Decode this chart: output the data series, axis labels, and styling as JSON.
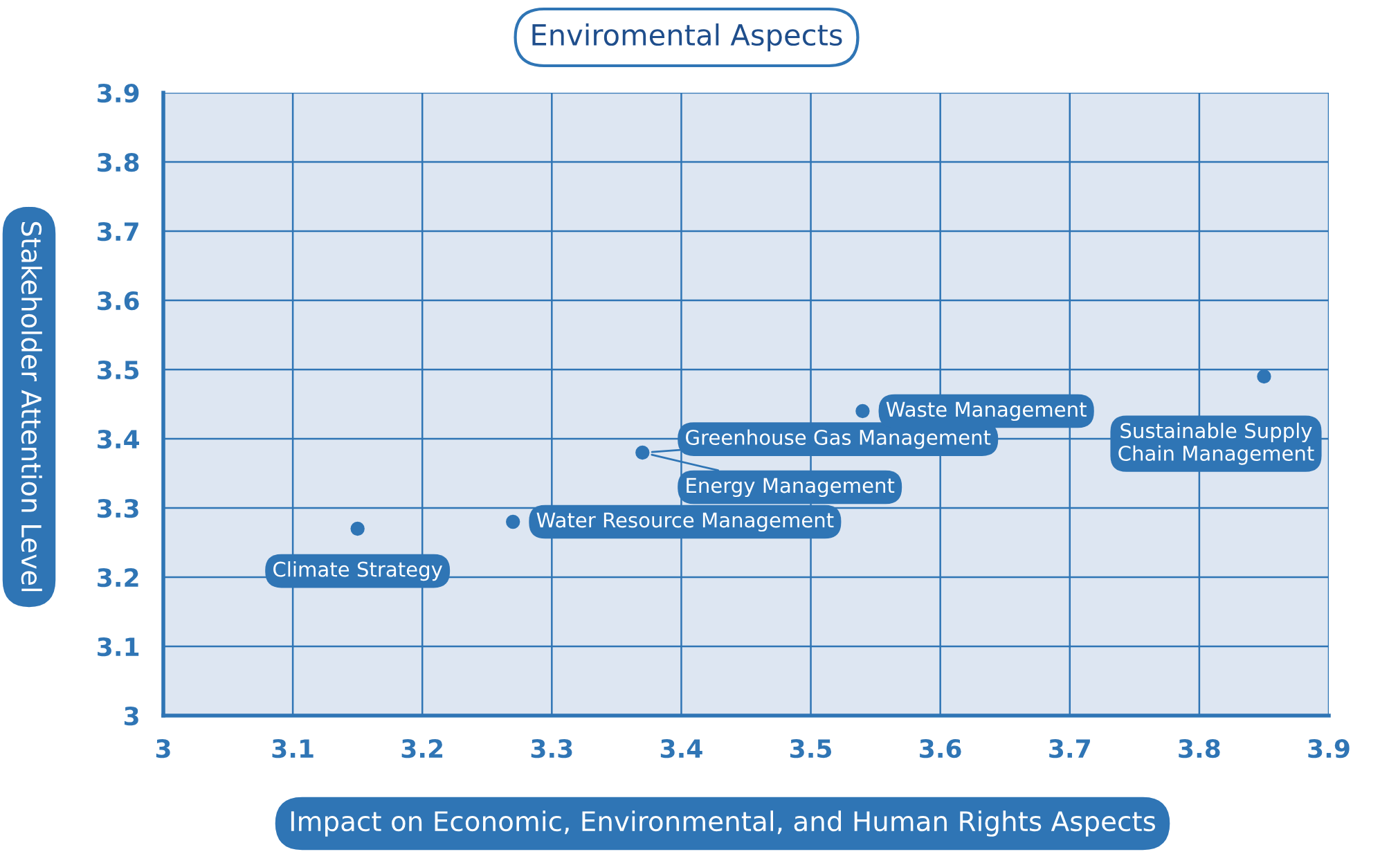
{
  "chart_data": {
    "type": "scatter",
    "title": "Enviromental Aspects",
    "xlabel": "Impact on Economic, Environmental, and Human Rights Aspects",
    "ylabel": "Stakeholder Attention Level",
    "series": [
      {
        "color": "#2f75b5",
        "x": [
          3.15,
          3.27,
          3.37,
          3.54,
          3.85
        ],
        "values": [
          3.27,
          3.28,
          3.38,
          3.44,
          3.49
        ]
      }
    ],
    "annotations": [
      {
        "text": "Climate Strategy",
        "x": 3.15,
        "y": 3.27
      },
      {
        "text": "Water Resource Management",
        "x": 3.27,
        "y": 3.28
      },
      {
        "text": "Greenhouse Gas Management",
        "x": 3.37,
        "y": 3.38
      },
      {
        "text": "Energy Management",
        "x": 3.37,
        "y": 3.38
      },
      {
        "text": "Waste Management",
        "x": 3.54,
        "y": 3.44
      },
      {
        "text": "Sustainable Supply\nChain Management",
        "x": 3.85,
        "y": 3.49
      }
    ],
    "xlim": [
      3,
      3.9
    ],
    "ylim": [
      3,
      3.9
    ],
    "xticks": [
      3,
      3.1,
      3.2,
      3.3,
      3.4,
      3.5,
      3.6,
      3.7,
      3.8,
      3.9
    ],
    "yticks": [
      3,
      3.1,
      3.2,
      3.3,
      3.4,
      3.5,
      3.6,
      3.7,
      3.8,
      3.9
    ],
    "grid": true,
    "marker": "circle"
  }
}
